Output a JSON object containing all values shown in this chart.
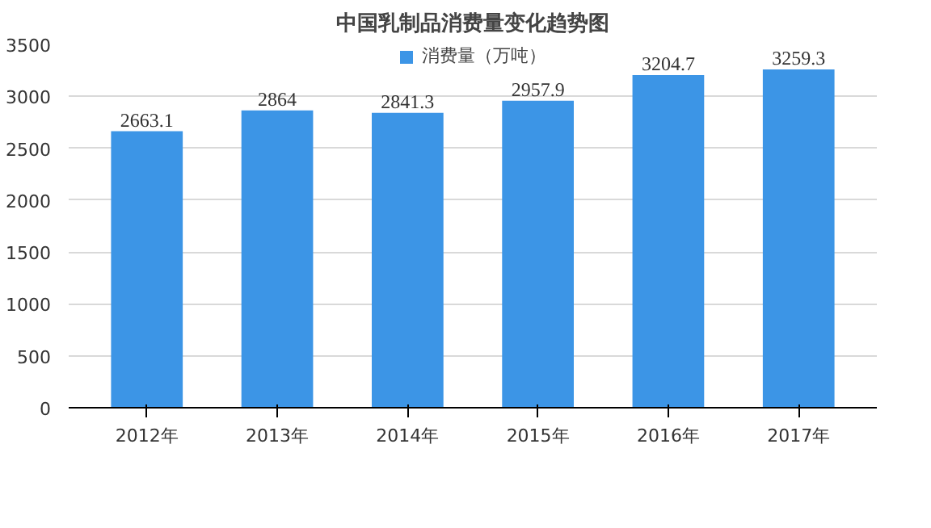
{
  "chart_data": {
    "type": "bar",
    "title": "中国乳制品消费量变化趋势图",
    "categories": [
      "2012年",
      "2013年",
      "2014年",
      "2015年",
      "2016年",
      "2017年"
    ],
    "series": [
      {
        "name": "消费量（万吨）",
        "color": "#3c95e6",
        "values": [
          2663.1,
          2864,
          2841.3,
          2957.9,
          3204.7,
          3259.3
        ]
      }
    ],
    "ylim": [
      0,
      3500
    ],
    "yticks": [
      0,
      500,
      1000,
      1500,
      2000,
      2500,
      3000,
      3500
    ],
    "grid": "y",
    "legend": "top",
    "data_labels": true
  }
}
